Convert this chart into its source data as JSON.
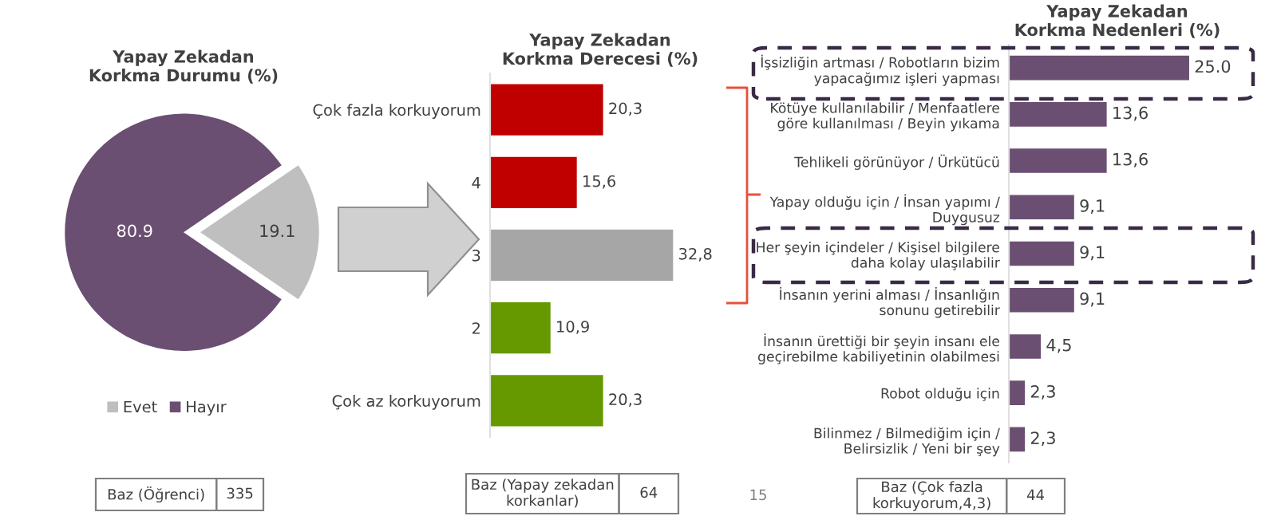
{
  "chart_data": [
    {
      "type": "pie",
      "title": "Yapay Zekadan\nKorkma Durumu (%)",
      "categories": [
        "Evet",
        "Hayır"
      ],
      "values": [
        19.1,
        80.9
      ],
      "colors": [
        "#bfbfbf",
        "#6b4f72"
      ],
      "value_labels": [
        "19.1",
        "80.9"
      ],
      "legend": "bottom",
      "annotations": [
        "Baz (Öğrenci)",
        "335"
      ]
    },
    {
      "type": "bar",
      "orientation": "horizontal",
      "title": "Yapay Zekadan\nKorkma Derecesi (%)",
      "categories": [
        "Çok fazla korkuyorum",
        "4",
        "3",
        "2",
        "Çok az korkuyorum"
      ],
      "values": [
        20.3,
        15.6,
        32.8,
        10.9,
        20.3
      ],
      "colors": [
        "#c00000",
        "#c00000",
        "#a6a6a6",
        "#669900",
        "#669900"
      ],
      "value_labels": [
        "20,3",
        "15,6",
        "32,8",
        "10,9",
        "20,3"
      ],
      "annotations": [
        "Baz (Yapay zekadan\nkorkanlar)",
        "64"
      ]
    },
    {
      "type": "bar",
      "orientation": "horizontal",
      "title": "Yapay Zekadan\nKorkma Nedenleri (%)",
      "categories": [
        "İşsizliğin artması / Robotların bizim\nyapacağımız işleri yapması",
        "Kötüye kullanılabilir / Menfaatlere\ngöre kullanılması / Beyin yıkama",
        "Tehlikeli görünüyor / Ürkütücü",
        "Yapay olduğu için / İnsan yapımı /\nDuygusuz",
        "Her şeyin içindeler / Kişisel bilgilere\ndaha kolay ulaşılabilir",
        "İnsanın yerini alması / İnsanlığın\nsonunu getirebilir",
        "İnsanın ürettiği bir şeyin insanı ele\ngeçirebilme kabiliyetinin olabilmesi",
        "Robot olduğu için",
        "Bilinmez / Bilmediğim için /\nBelirsizlik / Yeni bir şey"
      ],
      "values": [
        25.0,
        13.6,
        13.6,
        9.1,
        9.1,
        9.1,
        4.5,
        2.3,
        2.3
      ],
      "color": "#6b4f72",
      "value_labels": [
        "25.0",
        "13,6",
        "13,6",
        "9,1",
        "9,1",
        "9,1",
        "4,5",
        "2,3",
        "2,3"
      ],
      "annotations": [
        "Baz (Çok fazla\nkorkuyorum,4,3)",
        "44",
        "15"
      ]
    }
  ]
}
